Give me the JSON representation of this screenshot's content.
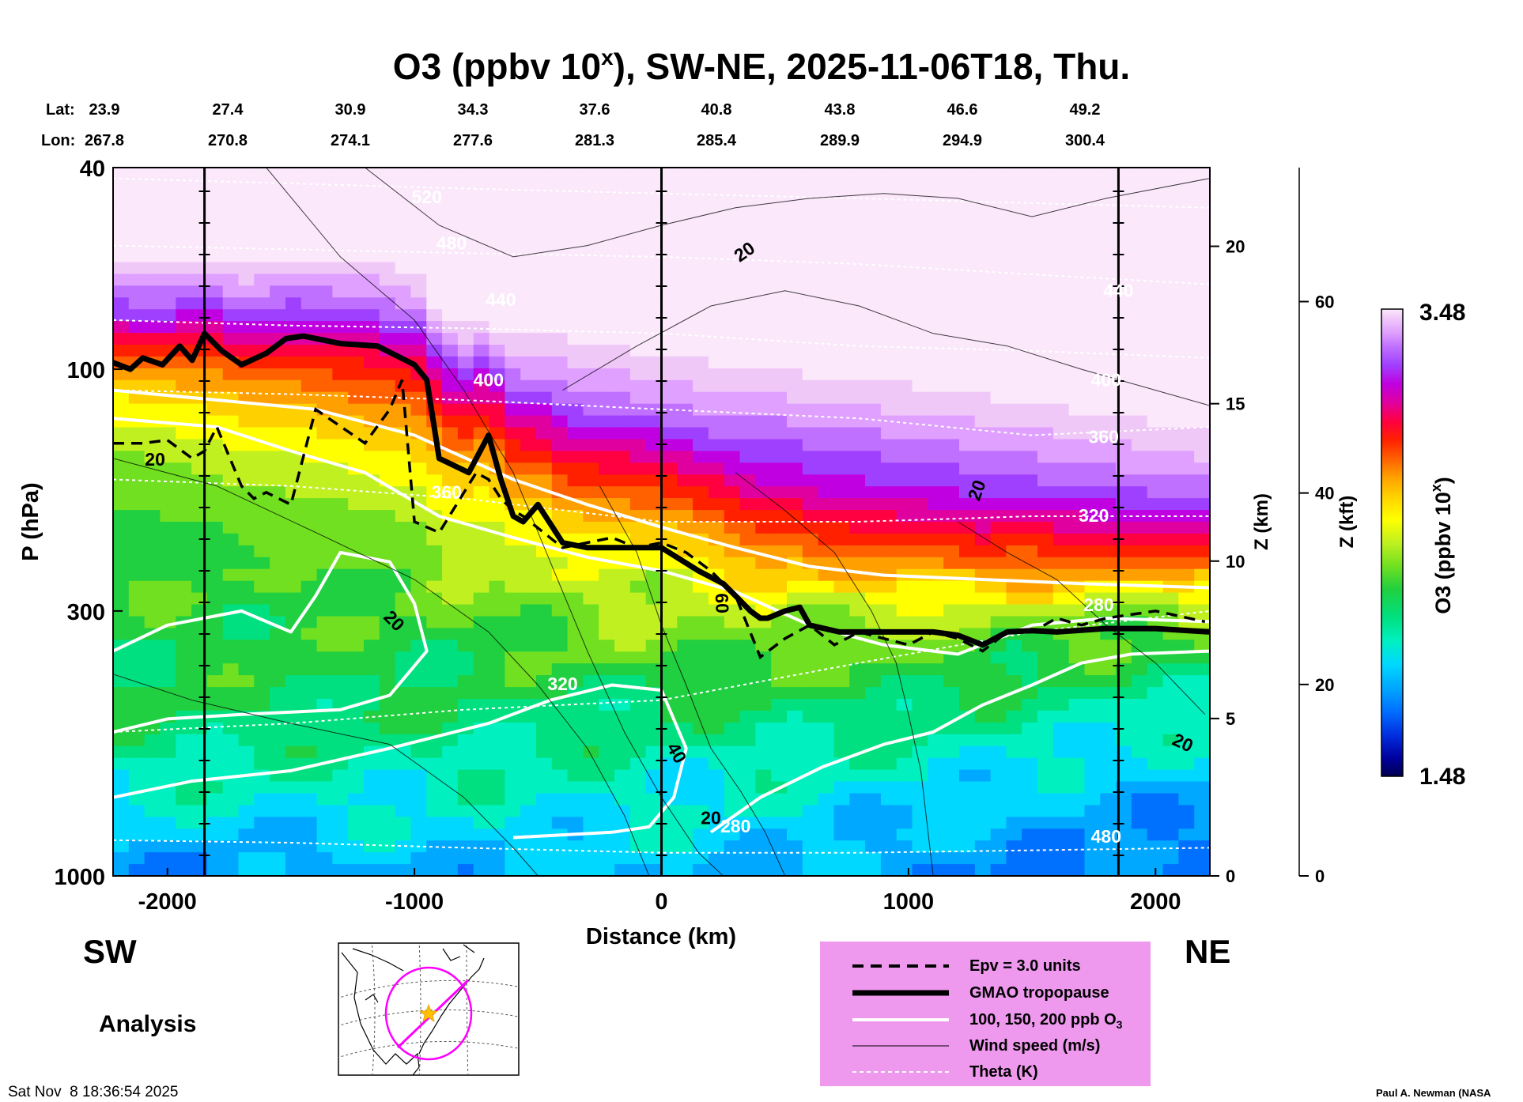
{
  "chart_data": {
    "type": "heatmap",
    "title_prefix": "O3 (ppbv 10",
    "title_sup": "x",
    "title_suffix": "), SW-NE, 2025-11-06T18, Thu.",
    "xlabel": "Distance (km)",
    "ylabel": "P (hPa)",
    "z_km_label": "Z (km)",
    "z_kft_label": "Z (kft)",
    "colorbar_label_prefix": "O3 (ppbv 10",
    "colorbar_label_sup": "x",
    "colorbar_label_suffix": ")",
    "colorbar_min": 1.48,
    "colorbar_max": 3.48,
    "colorbar_min_label": "1.48",
    "colorbar_max_label": "3.48",
    "xlim": [
      -2220,
      2220
    ],
    "ylim_hpa": [
      1000,
      40
    ],
    "x_ticks": [
      {
        "value": -2000,
        "label": "-2000"
      },
      {
        "value": -1000,
        "label": "-1000"
      },
      {
        "value": 0,
        "label": "0"
      },
      {
        "value": 1000,
        "label": "1000"
      },
      {
        "value": 2000,
        "label": "2000"
      }
    ],
    "p_ticks": [
      {
        "value": 40,
        "label": "40"
      },
      {
        "value": 100,
        "label": "100"
      },
      {
        "value": 300,
        "label": "300"
      },
      {
        "value": 1000,
        "label": "1000"
      }
    ],
    "z_km_ticks": [
      {
        "value": 0,
        "label": "0"
      },
      {
        "value": 5,
        "label": "5"
      },
      {
        "value": 10,
        "label": "10"
      },
      {
        "value": 15,
        "label": "15"
      },
      {
        "value": 20,
        "label": "20"
      }
    ],
    "z_kft_ticks": [
      {
        "value": 0,
        "label": "0"
      },
      {
        "value": 20,
        "label": "20"
      },
      {
        "value": 40,
        "label": "40"
      },
      {
        "value": 60,
        "label": "60"
      }
    ],
    "lat_label": "Lat:",
    "lon_label": "Lon:",
    "lat_values": [
      "23.9",
      "27.4",
      "30.9",
      "34.3",
      "37.6",
      "40.8",
      "43.8",
      "46.6",
      "49.2"
    ],
    "lon_values": [
      "267.8",
      "270.8",
      "274.1",
      "277.6",
      "281.3",
      "285.4",
      "289.9",
      "294.9",
      "300.4"
    ],
    "vertical_markers_km": [
      -1850,
      0,
      1850
    ],
    "tropopause_hpa": {
      "x": [
        -2220,
        -2150,
        -2100,
        -2020,
        -1950,
        -1900,
        -1850,
        -1780,
        -1700,
        -1600,
        -1520,
        -1450,
        -1300,
        -1150,
        -1000,
        -950,
        -900,
        -780,
        -700,
        -650,
        -600,
        -560,
        -500,
        -400,
        -300,
        -100,
        0,
        150,
        250,
        300,
        360,
        400,
        430,
        500,
        560,
        600,
        720,
        900,
        1100,
        1200,
        1300,
        1400,
        1500,
        1600,
        1800,
        2000,
        2220
      ],
      "p": [
        97,
        100,
        95,
        98,
        90,
        96,
        85,
        92,
        98,
        93,
        87,
        86,
        89,
        90,
        98,
        105,
        150,
        160,
        135,
        165,
        195,
        200,
        185,
        220,
        225,
        225,
        225,
        250,
        265,
        280,
        300,
        310,
        310,
        300,
        295,
        320,
        330,
        330,
        330,
        335,
        350,
        330,
        328,
        330,
        325,
        325,
        330
      ]
    },
    "epv_hpa": {
      "x": [
        -2220,
        -2100,
        -2000,
        -1900,
        -1850,
        -1800,
        -1700,
        -1650,
        -1600,
        -1500,
        -1400,
        -1200,
        -1100,
        -1050,
        -1000,
        -900,
        -750,
        -700,
        -650,
        -600,
        -560,
        -400,
        -200,
        -100,
        0,
        100,
        200,
        300,
        400,
        500,
        600,
        700,
        800,
        900,
        1000,
        1100,
        1200,
        1300,
        1400,
        1500,
        1600,
        1700,
        1800,
        2000,
        2200
      ],
      "p": [
        140,
        140,
        138,
        150,
        145,
        130,
        170,
        180,
        175,
        185,
        120,
        140,
        120,
        105,
        200,
        210,
        160,
        165,
        180,
        190,
        195,
        225,
        215,
        225,
        220,
        230,
        250,
        280,
        370,
        340,
        320,
        350,
        330,
        340,
        350,
        330,
        340,
        360,
        330,
        330,
        310,
        320,
        310,
        300,
        315
      ]
    },
    "theta_levels_K": [
      280,
      320,
      360,
      400,
      440,
      480,
      520
    ],
    "theta_hpa_at": {
      "x": [
        -2220,
        -1500,
        -800,
        0,
        800,
        1500,
        2220
      ],
      "280": [
        850,
        860,
        880,
        900,
        900,
        890,
        880
      ],
      "320": [
        520,
        500,
        470,
        450,
        380,
        330,
        300
      ],
      "360": [
        165,
        170,
        180,
        200,
        200,
        195,
        195
      ],
      "400": [
        110,
        112,
        115,
        120,
        125,
        135,
        130
      ],
      "440": [
        80,
        82,
        83,
        85,
        90,
        92,
        95
      ],
      "480": [
        57,
        58,
        59,
        60,
        62,
        65,
        68
      ],
      "520": [
        42,
        43,
        44,
        45,
        46,
        47,
        48
      ]
    },
    "contour_labels": {
      "theta": [
        "520",
        "480",
        "440",
        "400",
        "360",
        "320",
        "280",
        "440",
        "400",
        "360",
        "320",
        "280",
        "480"
      ],
      "wind": [
        "20",
        "20",
        "20",
        "20",
        "60",
        "40",
        "20",
        "20"
      ]
    },
    "o3_profile_log10": {
      "p_hpa": [
        1000,
        700,
        500,
        300,
        200,
        150,
        120,
        100,
        80,
        60,
        40
      ],
      "sw_column": [
        1.9,
        2.1,
        2.25,
        2.3,
        2.3,
        2.35,
        2.45,
        2.6,
        2.95,
        3.2,
        3.4
      ],
      "center_column": [
        2.0,
        2.1,
        2.2,
        2.35,
        2.5,
        2.7,
        2.9,
        3.05,
        3.2,
        3.3,
        3.42
      ],
      "ne_column": [
        1.85,
        1.95,
        2.05,
        2.25,
        2.75,
        3.0,
        3.15,
        3.25,
        3.35,
        3.42,
        3.47
      ]
    }
  },
  "labels": {
    "sw": "SW",
    "ne": "NE",
    "analysis": "Analysis",
    "timestamp": "Sat Nov  8 18:36:54 2025",
    "credit": "Paul A. Newman (NASA"
  },
  "legend": {
    "items": [
      {
        "key": "epv",
        "label": "Epv = 3.0 units"
      },
      {
        "key": "tropopause",
        "label": "GMAO tropopause"
      },
      {
        "key": "o3_contours",
        "label": "100, 150, 200 ppb O"
      },
      {
        "key": "wind",
        "label": "Wind speed (m/s)"
      },
      {
        "key": "theta",
        "label": "Theta (K)"
      }
    ],
    "o3_subscript": "3",
    "background": "#ee99ee"
  },
  "colors": {
    "colorbar": [
      "#000050",
      "#0000a0",
      "#0030e0",
      "#0070ff",
      "#00a8ff",
      "#00d8ff",
      "#00f0c0",
      "#00e080",
      "#20d040",
      "#70e020",
      "#c0f020",
      "#ffff00",
      "#ffd000",
      "#ffa000",
      "#ff6000",
      "#ff2000",
      "#ff0040",
      "#e000a0",
      "#c000e0",
      "#a040ff",
      "#c070ff",
      "#e0a0ff",
      "#f0c8f8",
      "#fbe8fb"
    ]
  }
}
